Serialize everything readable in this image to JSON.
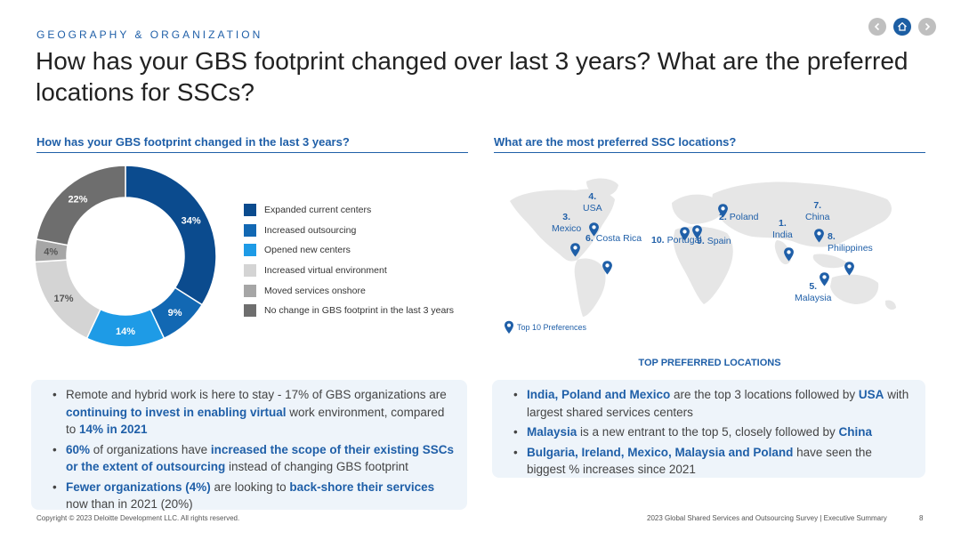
{
  "header": {
    "eyebrow": "GEOGRAPHY & ORGANIZATION",
    "title": "How has your GBS footprint changed over last 3 years? What are the preferred locations for SSCs?"
  },
  "nav": {
    "prev_icon": "chevron-left-icon",
    "home_icon": "home-icon",
    "next_icon": "chevron-right-icon"
  },
  "left": {
    "heading": "How has your GBS footprint changed in the last 3 years?",
    "bullets": [
      [
        {
          "t": "Remote and hybrid work is here to stay - 17% of GBS organizations are "
        },
        {
          "t": "continuing to invest in enabling virtual",
          "hl": true
        },
        {
          "t": " work environment, compared to "
        },
        {
          "t": "14% in 2021",
          "hl": true
        }
      ],
      [
        {
          "t": "60%",
          "hl": true
        },
        {
          "t": " of organizations have "
        },
        {
          "t": "increased the scope of their existing SSCs or the extent of outsourcing",
          "hl": true
        },
        {
          "t": " instead of changing GBS footprint"
        }
      ],
      [
        {
          "t": "Fewer organizations (4%)",
          "hl": true
        },
        {
          "t": " are looking to "
        },
        {
          "t": "back-shore their services",
          "hl": true
        },
        {
          "t": " now than in 2021 (20%)"
        }
      ]
    ]
  },
  "right": {
    "heading": "What are the most preferred SSC locations?",
    "map_note": "Top 10 Preferences",
    "subheading": "TOP PREFERRED LOCATIONS",
    "locations": [
      {
        "rank": "1.",
        "name": "India"
      },
      {
        "rank": "2.",
        "name": "Poland"
      },
      {
        "rank": "3.",
        "name": "Mexico"
      },
      {
        "rank": "4.",
        "name": "USA"
      },
      {
        "rank": "5.",
        "name": "Malaysia"
      },
      {
        "rank": "6.",
        "name": "Costa Rica"
      },
      {
        "rank": "7.",
        "name": "China"
      },
      {
        "rank": "8.",
        "name": "Philippines"
      },
      {
        "rank": "9.",
        "name": "Spain"
      },
      {
        "rank": "10.",
        "name": "Portugal"
      }
    ],
    "bullets": [
      [
        {
          "t": "India, Poland and Mexico",
          "hl": true
        },
        {
          "t": " are the top 3 locations followed by "
        },
        {
          "t": "USA",
          "hl": true
        },
        {
          "t": " with largest shared services centers"
        }
      ],
      [
        {
          "t": "Malaysia",
          "hl": true
        },
        {
          "t": " is a new entrant to the top 5, closely followed by "
        },
        {
          "t": "China",
          "hl": true
        }
      ],
      [
        {
          "t": "Bulgaria, Ireland, Mexico, Malaysia and Poland",
          "hl": true
        },
        {
          "t": " have seen the biggest % increases since 2021"
        }
      ]
    ]
  },
  "chart_data": {
    "type": "pie",
    "variant": "donut",
    "categories": [
      "Expanded current centers",
      "Increased outsourcing",
      "Opened new centers",
      "Increased virtual environment",
      "Moved services onshore",
      "No change in GBS footprint in the last 3 years"
    ],
    "values": [
      34,
      9,
      14,
      17,
      4,
      22
    ],
    "labels": [
      "34%",
      "9%",
      "14%",
      "17%",
      "4%",
      "22%"
    ],
    "colors": [
      "#0b4b8e",
      "#1268b3",
      "#1e9be6",
      "#d4d4d4",
      "#a6a6a6",
      "#6e6e6e"
    ],
    "label_colors": [
      "#ffffff",
      "#ffffff",
      "#ffffff",
      "#555555",
      "#555555",
      "#ffffff"
    ],
    "legend_position": "right"
  },
  "footer": {
    "copyright": "Copyright © 2023 Deloitte Development LLC. All rights reserved.",
    "report": "2023 Global Shared Services and Outsourcing Survey | Executive Summary",
    "page": "8"
  },
  "colors": {
    "accent": "#1f5fa8",
    "box_bg": "#eef4fa",
    "map_land": "#e6e6e6"
  }
}
